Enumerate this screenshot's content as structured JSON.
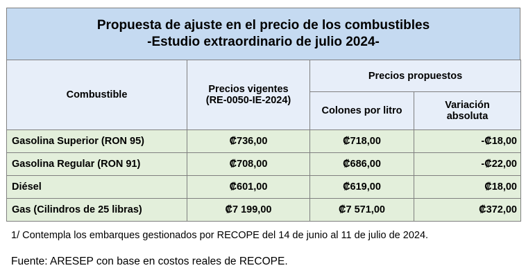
{
  "title": {
    "line1": "Propuesta de ajuste en el precio de los combustibles",
    "line2": "-Estudio extraordinario de julio 2024-"
  },
  "table": {
    "headers": {
      "fuel": "Combustible",
      "current_prices_line1": "Precios vigentes",
      "current_prices_line2": "(RE-0050-IE-2024)",
      "proposed": "Precios propuestos",
      "colones_per_liter": "Colones por litro",
      "variation_line1": "Variación",
      "variation_line2": "absoluta"
    },
    "rows": [
      {
        "fuel": "Gasolina Superior (RON 95)",
        "current": "₡736,00",
        "proposed": "₡718,00",
        "variation": "-₡18,00"
      },
      {
        "fuel": "Gasolina Regular (RON 91)",
        "current": "₡708,00",
        "proposed": "₡686,00",
        "variation": "-₡22,00"
      },
      {
        "fuel": "Diésel",
        "current": "₡601,00",
        "proposed": "₡619,00",
        "variation": "₡18,00"
      },
      {
        "fuel": "Gas (Cilindros de 25 libras)",
        "current": "₡7 199,00",
        "proposed": "₡7 571,00",
        "variation": "₡372,00"
      }
    ]
  },
  "footnote": "1/ Contempla los embarques gestionados por RECOPE del 14 de junio al 11 de julio de 2024.",
  "source": "Fuente: ARESEP con base en costos reales de RECOPE.",
  "colors": {
    "title_bg": "#c5daf1",
    "header_bg": "#e7eef9",
    "row_bg": "#e3efdb",
    "border": "#7f7f7f"
  }
}
